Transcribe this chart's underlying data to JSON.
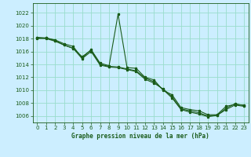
{
  "title": "Graphe pression niveau de la mer (hPa)",
  "bg_color": "#cceeff",
  "line_color": "#1a5c1a",
  "grid_color": "#99ddcc",
  "xlim": [
    -0.5,
    23.5
  ],
  "ylim": [
    1005.0,
    1023.5
  ],
  "yticks": [
    1006,
    1008,
    1010,
    1012,
    1014,
    1016,
    1018,
    1020,
    1022
  ],
  "xticks": [
    0,
    1,
    2,
    3,
    4,
    5,
    6,
    7,
    8,
    9,
    10,
    11,
    12,
    13,
    14,
    15,
    16,
    17,
    18,
    19,
    20,
    21,
    22,
    23
  ],
  "series": [
    [
      1018.0,
      1018.1,
      1017.8,
      1017.2,
      1016.8,
      1015.0,
      1016.3,
      1014.2,
      1013.8,
      1021.8,
      1013.5,
      1013.4,
      1012.0,
      1011.6,
      1010.0,
      1009.3,
      1007.3,
      1007.0,
      1006.8,
      1006.2,
      1006.2,
      1007.5,
      1007.8,
      1007.7
    ],
    [
      1018.2,
      1018.1,
      1017.7,
      1017.0,
      1016.5,
      1014.9,
      1016.0,
      1013.9,
      1013.6,
      1013.5,
      1013.2,
      1012.9,
      1011.7,
      1011.1,
      1010.2,
      1009.0,
      1007.1,
      1006.8,
      1006.5,
      1006.0,
      1006.1,
      1007.2,
      1007.9,
      1007.6
    ],
    [
      1018.1,
      1018.0,
      1017.6,
      1017.0,
      1016.5,
      1015.2,
      1016.2,
      1014.0,
      1013.7,
      1013.6,
      1013.3,
      1013.0,
      1011.9,
      1011.3,
      1010.1,
      1008.8,
      1007.0,
      1006.6,
      1006.3,
      1005.9,
      1006.1,
      1007.0,
      1007.7,
      1007.5
    ]
  ],
  "title_fontsize": 5.5,
  "tick_fontsize": 5.0,
  "linewidth": 0.8,
  "markersize": 2.2
}
